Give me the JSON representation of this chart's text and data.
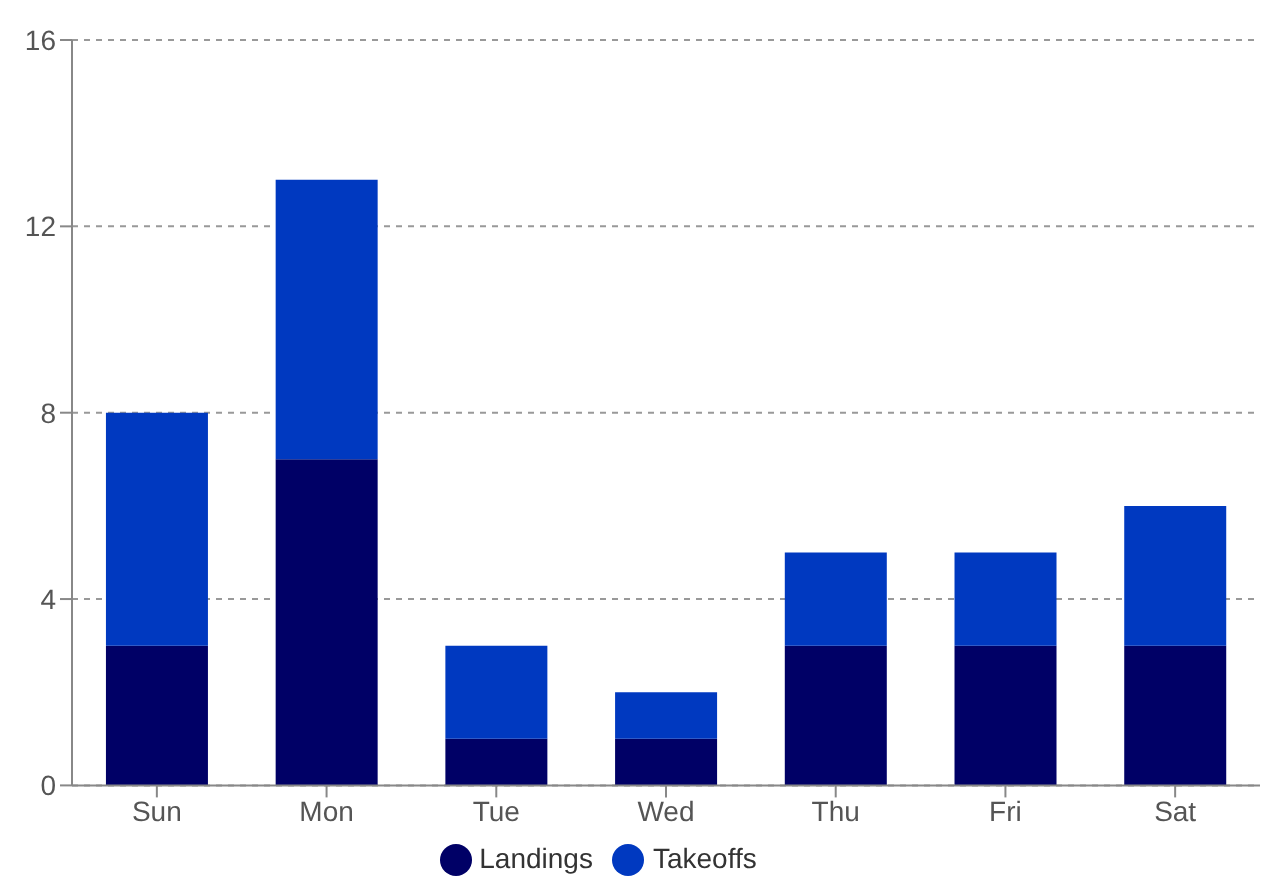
{
  "chart_data": {
    "type": "bar",
    "stacked": true,
    "categories": [
      "Sun",
      "Mon",
      "Tue",
      "Wed",
      "Thu",
      "Fri",
      "Sat"
    ],
    "series": [
      {
        "name": "Landings",
        "color": "#000066",
        "values": [
          3,
          7,
          1,
          1,
          3,
          3,
          3
        ]
      },
      {
        "name": "Takeoffs",
        "color": "#0039c0",
        "values": [
          5,
          6,
          2,
          1,
          2,
          2,
          3
        ]
      }
    ],
    "ylim": [
      0,
      16
    ],
    "yticks": [
      0,
      4,
      8,
      12,
      16
    ],
    "grid": "y",
    "legend": "bottom"
  }
}
